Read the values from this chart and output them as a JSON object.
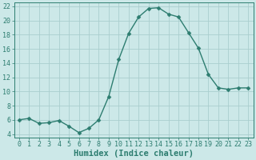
{
  "x": [
    0,
    1,
    2,
    3,
    4,
    5,
    6,
    7,
    8,
    9,
    10,
    11,
    12,
    13,
    14,
    15,
    16,
    17,
    18,
    19,
    20,
    21,
    22,
    23
  ],
  "y": [
    6.0,
    6.2,
    5.5,
    5.6,
    5.9,
    5.1,
    4.2,
    4.8,
    6.0,
    9.3,
    14.5,
    18.2,
    20.5,
    21.7,
    21.8,
    20.9,
    20.5,
    18.3,
    16.1,
    12.4,
    10.5,
    10.3,
    10.5,
    10.5
  ],
  "line_color": "#2d7d70",
  "marker": "D",
  "marker_size": 2.5,
  "bg_color": "#cce8e8",
  "grid_color": "#aacece",
  "xlabel": "Humidex (Indice chaleur)",
  "xlim": [
    -0.5,
    23.5
  ],
  "ylim": [
    3.5,
    22.5
  ],
  "yticks": [
    4,
    6,
    8,
    10,
    12,
    14,
    16,
    18,
    20,
    22
  ],
  "xticks": [
    0,
    1,
    2,
    3,
    4,
    5,
    6,
    7,
    8,
    9,
    10,
    11,
    12,
    13,
    14,
    15,
    16,
    17,
    18,
    19,
    20,
    21,
    22,
    23
  ],
  "tick_color": "#2d7d70",
  "spine_color": "#2d7d70",
  "font_size": 6.0,
  "xlabel_fontsize": 7.5,
  "line_width": 1.0
}
